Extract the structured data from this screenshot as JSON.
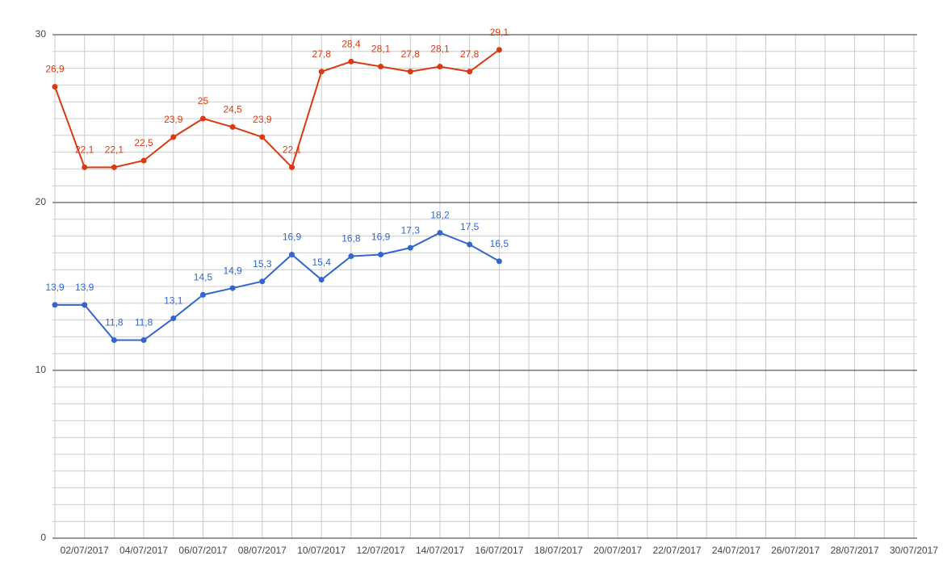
{
  "chart_data": {
    "type": "line",
    "x": [
      "01/07/2017",
      "02/07/2017",
      "03/07/2017",
      "04/07/2017",
      "05/07/2017",
      "06/07/2017",
      "07/07/2017",
      "08/07/2017",
      "09/07/2017",
      "10/07/2017",
      "11/07/2017",
      "12/07/2017",
      "13/07/2017",
      "14/07/2017",
      "15/07/2017",
      "16/07/2017"
    ],
    "series": [
      {
        "color": "#dc3912",
        "values": [
          26.9,
          22.1,
          22.1,
          22.5,
          23.9,
          25,
          24.5,
          23.9,
          22.1,
          27.8,
          28.4,
          28.1,
          27.8,
          28.1,
          27.8,
          29.1
        ],
        "value_labels": [
          "26,9",
          "22,1",
          "22,1",
          "22,5",
          "23,9",
          "25",
          "24,5",
          "23,9",
          "22,1",
          "27,8",
          "28,4",
          "28,1",
          "27,8",
          "28,1",
          "27,8",
          "29,1"
        ]
      },
      {
        "color": "#3366cc",
        "values": [
          13.9,
          13.9,
          11.8,
          11.8,
          13.1,
          14.5,
          14.9,
          15.3,
          16.9,
          15.4,
          16.8,
          16.9,
          17.3,
          18.2,
          17.5,
          16.5
        ],
        "value_labels": [
          "13,9",
          "13,9",
          "11,8",
          "11,8",
          "13,1",
          "14,5",
          "14,9",
          "15,3",
          "16,9",
          "15,4",
          "16,8",
          "16,9",
          "17,3",
          "18,2",
          "17,5",
          "16,5"
        ]
      }
    ],
    "xlim": [
      "01/07/2017",
      "30/07/2017"
    ],
    "xticks": [
      "02/07/2017",
      "04/07/2017",
      "06/07/2017",
      "08/07/2017",
      "10/07/2017",
      "12/07/2017",
      "14/07/2017",
      "16/07/2017",
      "18/07/2017",
      "20/07/2017",
      "22/07/2017",
      "24/07/2017",
      "26/07/2017",
      "28/07/2017",
      "30/07/2017"
    ],
    "ylim": [
      0,
      30
    ],
    "yticks": [
      0,
      10,
      20,
      30
    ],
    "grid": true,
    "minor_grid": true
  }
}
